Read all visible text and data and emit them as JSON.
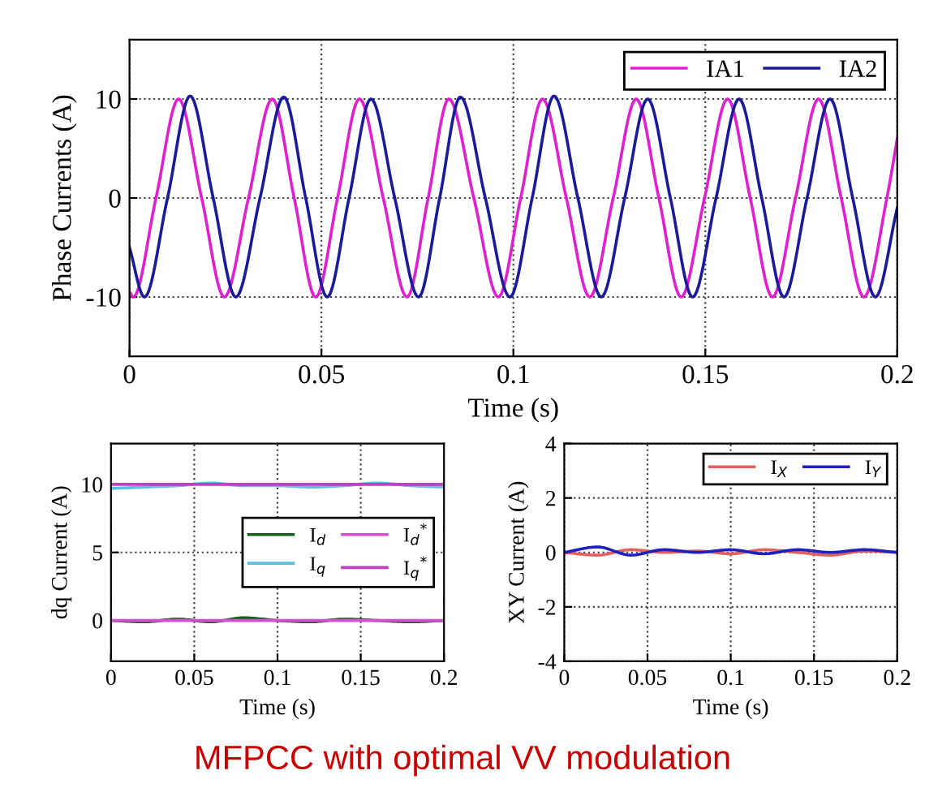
{
  "chart_data": [
    {
      "type": "line",
      "xlabel": "Time (s)",
      "ylabel": "Phase Currents (A)",
      "xlim": [
        0,
        0.2
      ],
      "ylim": [
        -16,
        16
      ],
      "xticks": [
        0,
        0.05,
        0.1,
        0.15,
        0.2
      ],
      "yticks": [
        -10,
        0,
        10
      ],
      "grid": true,
      "legend": "top right",
      "series": [
        {
          "name": "IA1",
          "color": "#e020d0",
          "x": [
            0,
            0.001,
            0.0069,
            0.0128,
            0.0188,
            0.0247,
            0.031,
            0.0372,
            0.0429,
            0.0485,
            0.0542,
            0.0599,
            0.0661,
            0.0723,
            0.0778,
            0.0832,
            0.0897,
            0.0961,
            0.1019,
            0.1076,
            0.1138,
            0.1199,
            0.126,
            0.132,
            0.1379,
            0.1437,
            0.1498,
            0.1558,
            0.1617,
            0.1675,
            0.1735,
            0.1795,
            0.1854,
            0.1913,
            0.1973,
            0.2
          ],
          "values": [
            -9.5,
            -10,
            0,
            10,
            0,
            -10,
            0,
            10,
            0,
            -10,
            0,
            10,
            0,
            -10,
            0,
            10,
            0,
            -10,
            0,
            10,
            0,
            -10,
            0,
            10,
            0,
            -10,
            0,
            10,
            0,
            -10,
            0,
            10,
            0,
            -10,
            0,
            6
          ]
        },
        {
          "name": "IA2",
          "color": "#1a1a9a",
          "x": [
            0,
            0.0039,
            0.0099,
            0.0158,
            0.0218,
            0.0277,
            0.034,
            0.0402,
            0.0459,
            0.0515,
            0.0572,
            0.0629,
            0.0691,
            0.0753,
            0.0808,
            0.0862,
            0.0927,
            0.0991,
            0.1049,
            0.1106,
            0.1168,
            0.1229,
            0.129,
            0.135,
            0.1409,
            0.1467,
            0.1528,
            0.1588,
            0.1647,
            0.1705,
            0.1765,
            0.1825,
            0.1884,
            0.1943,
            0.2
          ],
          "values": [
            -5,
            -10,
            0,
            10.3,
            0,
            -10,
            0,
            10.2,
            0,
            -10,
            0,
            10,
            0,
            -10,
            0,
            10.2,
            0,
            -10,
            0,
            10.3,
            0,
            -10,
            0,
            10,
            0,
            -10,
            0,
            10,
            0,
            -10,
            0,
            10,
            0,
            -10,
            -1
          ]
        }
      ]
    },
    {
      "type": "line",
      "xlabel": "Time (s)",
      "ylabel": "dq Current (A)",
      "xlim": [
        0,
        0.2
      ],
      "ylim": [
        -3,
        13
      ],
      "xticks": [
        0,
        0.05,
        0.1,
        0.15,
        0.2
      ],
      "yticks": [
        0,
        5,
        10
      ],
      "grid": true,
      "legend": "right",
      "series": [
        {
          "name": "I$_{d}$",
          "color": "#1a5c1a",
          "x": [
            0,
            0.02,
            0.04,
            0.06,
            0.08,
            0.1,
            0.12,
            0.14,
            0.16,
            0.18,
            0.2
          ],
          "values": [
            0,
            -0.1,
            0.1,
            -0.1,
            0.2,
            0,
            -0.1,
            0.1,
            0,
            -0.1,
            0
          ]
        },
        {
          "name": "I$_{q}$",
          "color": "#5bc0de",
          "x": [
            0,
            0.02,
            0.04,
            0.06,
            0.08,
            0.1,
            0.12,
            0.14,
            0.16,
            0.18,
            0.2
          ],
          "values": [
            9.7,
            9.8,
            9.9,
            10.1,
            9.9,
            9.9,
            9.8,
            9.9,
            10.1,
            9.9,
            9.8
          ]
        },
        {
          "name": "I$_{d}$$^{*}$",
          "color": "#d050d0",
          "x": [
            0,
            0.2
          ],
          "values": [
            0,
            0
          ]
        },
        {
          "name": "I$_{q}$$^{*}$",
          "color": "#c040c0",
          "x": [
            0,
            0.2
          ],
          "values": [
            10,
            10
          ]
        }
      ]
    },
    {
      "type": "line",
      "xlabel": "Time (s)",
      "ylabel": "XY Current (A)",
      "xlim": [
        0,
        0.2
      ],
      "ylim": [
        -4,
        4
      ],
      "xticks": [
        0,
        0.05,
        0.1,
        0.15,
        0.2
      ],
      "yticks": [
        -4,
        -2,
        0,
        2,
        4
      ],
      "grid": true,
      "legend": "top right",
      "annotations": [
        "MFPCC with optimal VV modulation"
      ],
      "series": [
        {
          "name": "I$_{X}$",
          "color": "#e06060",
          "x": [
            0,
            0.02,
            0.04,
            0.06,
            0.08,
            0.1,
            0.12,
            0.14,
            0.16,
            0.18,
            0.2
          ],
          "values": [
            0,
            -0.1,
            0.1,
            0,
            0.05,
            -0.05,
            0.1,
            0,
            -0.1,
            0.05,
            0
          ]
        },
        {
          "name": "I$_{Y}$",
          "color": "#2020c0",
          "x": [
            0,
            0.02,
            0.04,
            0.06,
            0.08,
            0.1,
            0.12,
            0.14,
            0.16,
            0.18,
            0.2
          ],
          "values": [
            0,
            0.2,
            -0.1,
            0.1,
            0,
            0.1,
            -0.05,
            0.1,
            0,
            0.1,
            0
          ]
        }
      ]
    }
  ]
}
